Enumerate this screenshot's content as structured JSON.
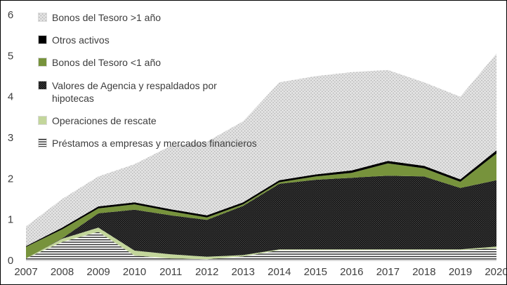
{
  "chart_data": {
    "type": "area",
    "stacked": true,
    "title": "",
    "xlabel": "",
    "ylabel": "",
    "grid": false,
    "background": "#ffffff",
    "legend_position": "top-left-overlay",
    "axis_text_color": "#3f3f3f",
    "ylim": [
      0,
      6
    ],
    "yticks": [
      "0",
      "1",
      "2",
      "3",
      "4",
      "5",
      "6"
    ],
    "categories": [
      "2007",
      "2008",
      "2009",
      "2010",
      "2011",
      "2012",
      "2013",
      "2014",
      "2015",
      "2016",
      "2017",
      "2018",
      "2019",
      "2020"
    ],
    "series_bottom_to_top": [
      {
        "name": "Préstamos a empresas y mercados financieros",
        "fill": "hlines",
        "values": [
          0.05,
          0.45,
          0.7,
          0.12,
          0.05,
          0.03,
          0.1,
          0.25,
          0.25,
          0.25,
          0.25,
          0.25,
          0.25,
          0.3
        ]
      },
      {
        "name": "Operaciones de rescate",
        "fill": "solid",
        "color": "#c3d69b",
        "values": [
          0.0,
          0.08,
          0.1,
          0.12,
          0.1,
          0.06,
          0.03,
          0.02,
          0.02,
          0.02,
          0.02,
          0.02,
          0.02,
          0.04
        ]
      },
      {
        "name": "Valores de Agencia y respaldados por hipotecas",
        "fill": "darkdots",
        "values": [
          0.0,
          0.01,
          0.35,
          1.0,
          0.95,
          0.9,
          1.2,
          1.6,
          1.7,
          1.75,
          1.8,
          1.78,
          1.5,
          1.62
        ]
      },
      {
        "name": "Bonos del Tesoro <1 año",
        "fill": "solid",
        "color": "#77933c",
        "values": [
          0.28,
          0.22,
          0.12,
          0.13,
          0.1,
          0.06,
          0.04,
          0.04,
          0.08,
          0.12,
          0.3,
          0.2,
          0.15,
          0.65
        ]
      },
      {
        "name": "Otros activos",
        "fill": "solid",
        "color": "#000000",
        "values": [
          0.02,
          0.04,
          0.05,
          0.05,
          0.05,
          0.05,
          0.05,
          0.05,
          0.05,
          0.06,
          0.06,
          0.06,
          0.06,
          0.08
        ]
      },
      {
        "name": "Bonos del Tesoro >1 año",
        "fill": "graydots",
        "values": [
          0.48,
          0.7,
          0.73,
          0.93,
          1.55,
          1.8,
          1.98,
          2.39,
          2.4,
          2.4,
          2.22,
          2.04,
          2.02,
          2.36
        ]
      }
    ],
    "patterns": {
      "hlines": {
        "bg": "#ffffff",
        "fg": "#1a1a1a"
      },
      "darkdots": {
        "bg": "#121212",
        "fg": "#616161"
      },
      "graydots": {
        "bg": "#e3e3e3",
        "fg": "#b3b3b3"
      }
    }
  }
}
